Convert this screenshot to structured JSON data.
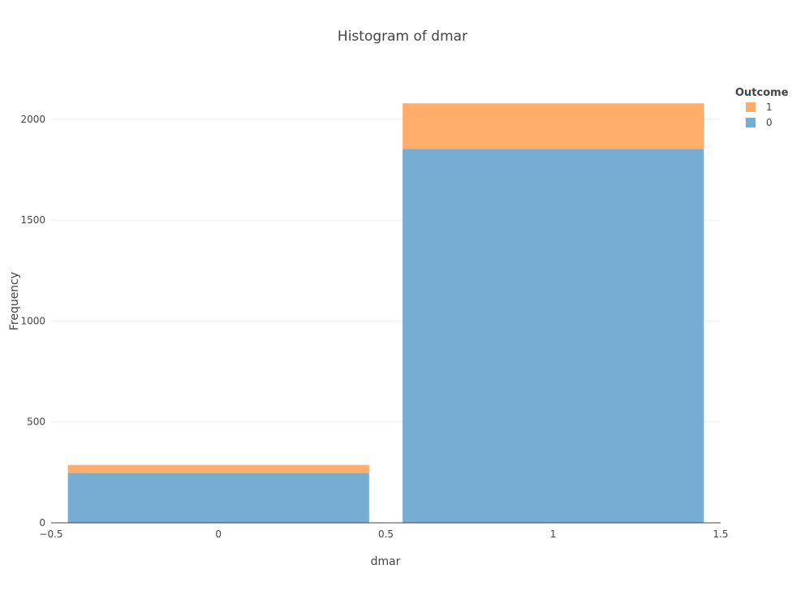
{
  "chart_data": {
    "type": "bar",
    "title": "Histogram of dmar",
    "xlabel": "dmar",
    "ylabel": "Frequency",
    "categories": [
      0,
      1
    ],
    "xlim": [
      -0.5,
      1.5
    ],
    "ylim": [
      0,
      2080
    ],
    "x_ticks": [
      "−0.5",
      "0",
      "0.5",
      "1",
      "1.5"
    ],
    "x_tick_values": [
      -0.5,
      0,
      0.5,
      1,
      1.5
    ],
    "y_ticks": [
      "0",
      "500",
      "1000",
      "1500",
      "2000"
    ],
    "y_tick_values": [
      0,
      500,
      1000,
      1500,
      2000
    ],
    "barmode": "stack",
    "bar_half_width": 0.45,
    "legend_title": "Outcome",
    "legend_placement": "top-right",
    "series": [
      {
        "name": "0",
        "values": [
          247,
          1853
        ],
        "color": "#77acd3"
      },
      {
        "name": "1",
        "values": [
          40,
          226
        ],
        "color": "#ffad6a"
      }
    ],
    "legend_order": [
      "1",
      "0"
    ],
    "grid": true
  }
}
